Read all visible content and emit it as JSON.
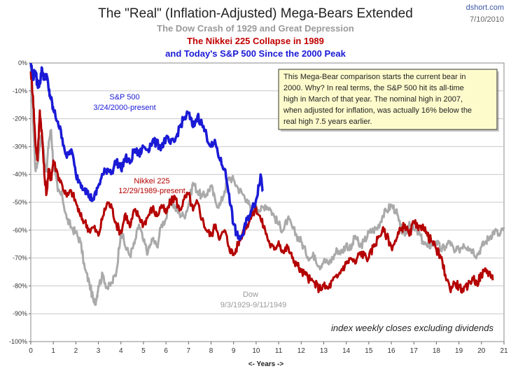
{
  "header": {
    "title": "The \"Real\" (Inflation-Adjusted) Mega-Bears Extended",
    "subtitle_dow": "The Dow Crash of 1929 and Great Depression",
    "subtitle_nikkei": "The Nikkei 225 Collapse in 1989",
    "subtitle_sp": "and Today's S&P 500 Since the 2000 Peak",
    "source": "dshort.com",
    "date": "7/10/2010"
  },
  "colors": {
    "dow": "#aaaaaa",
    "nikkei": "#b40000",
    "sp500": "#1a1ad6",
    "comment_bg": "#fdfbcc"
  },
  "comment": {
    "lines": [
      "This Mega-Bear comparison starts  the current bear in",
      "2000.  Why? In real terms, the S&P 500 hit its all-time",
      "high in March of that year. The nominal high in 2007,",
      "when adjusted for inflation, was actually 16% below the",
      "real high 7.5 years earlier."
    ]
  },
  "footnote": "index weekly closes excluding dividends",
  "labels": {
    "sp_name": "S&P 500",
    "sp_range": "3/24/2000-present",
    "nikkei_name": "Nikkei 225",
    "nikkei_range": "12/29/1989-present",
    "dow_name": "Dow",
    "dow_range": "9/3/1929-9/11/1949"
  },
  "chart_data": {
    "type": "line",
    "title": "The \"Real\" (Inflation-Adjusted) Mega-Bears Extended",
    "xlabel": "<- Years ->",
    "ylabel": "",
    "xlim": [
      0,
      21
    ],
    "ylim": [
      -100,
      0
    ],
    "x_ticks": [
      "0",
      "1",
      "2",
      "3",
      "4",
      "5",
      "6",
      "7",
      "8",
      "9",
      "10",
      "11",
      "12",
      "13",
      "14",
      "15",
      "16",
      "17",
      "18",
      "19",
      "20",
      "21"
    ],
    "y_ticks": [
      "0%",
      "-10%",
      "-20%",
      "-30%",
      "-40%",
      "-50%",
      "-60%",
      "-70%",
      "-80%",
      "-90%",
      "-100%"
    ],
    "grid": true,
    "series": [
      {
        "name": "Dow",
        "color": "#aaaaaa",
        "x": [
          0,
          0.1,
          0.2,
          0.3,
          0.4,
          0.5,
          0.6,
          0.7,
          0.8,
          0.9,
          1.0,
          1.2,
          1.4,
          1.6,
          1.8,
          2.0,
          2.2,
          2.4,
          2.6,
          2.8,
          2.9,
          3.0,
          3.2,
          3.4,
          3.6,
          3.8,
          4.0,
          4.2,
          4.4,
          4.6,
          4.8,
          5.0,
          5.2,
          5.4,
          5.6,
          5.8,
          6.0,
          6.2,
          6.4,
          6.6,
          6.8,
          7.0,
          7.2,
          7.4,
          7.6,
          7.8,
          8.0,
          8.2,
          8.4,
          8.6,
          8.8,
          9.0,
          9.2,
          9.4,
          9.6,
          9.8,
          10.0,
          10.2,
          10.4,
          10.6,
          10.8,
          11.0,
          11.2,
          11.4,
          11.6,
          11.8,
          12.0,
          12.2,
          12.4,
          12.6,
          12.8,
          13.0,
          13.2,
          13.4,
          13.6,
          13.8,
          14.0,
          14.2,
          14.4,
          14.6,
          14.8,
          15.0,
          15.2,
          15.4,
          15.6,
          15.8,
          16.0,
          16.2,
          16.4,
          16.6,
          16.8,
          17.0,
          17.2,
          17.4,
          17.6,
          17.8,
          18.0,
          18.2,
          18.4,
          18.6,
          18.8,
          19.0,
          19.2,
          19.4,
          19.6,
          19.8,
          20.0,
          20.2,
          20.4,
          20.6,
          20.8,
          21.0
        ],
        "values": [
          -1,
          -20,
          -38,
          -36,
          -29,
          -26,
          -34,
          -39,
          -28,
          -24,
          -36,
          -46,
          -48,
          -56,
          -59,
          -61,
          -64,
          -74,
          -79,
          -86,
          -85,
          -80,
          -76,
          -81,
          -79,
          -75,
          -60,
          -66,
          -69,
          -65,
          -58,
          -64,
          -68,
          -63,
          -66,
          -58,
          -56,
          -49,
          -52,
          -54,
          -55,
          -51,
          -43,
          -46,
          -48,
          -47,
          -44,
          -50,
          -51,
          -46,
          -41,
          -42,
          -45,
          -47,
          -49,
          -54,
          -51,
          -53,
          -51,
          -52,
          -55,
          -58,
          -60,
          -56,
          -59,
          -62,
          -64,
          -68,
          -70,
          -69,
          -73,
          -71,
          -72,
          -70,
          -67,
          -68,
          -65,
          -67,
          -62,
          -66,
          -64,
          -61,
          -60,
          -59,
          -55,
          -53,
          -51,
          -53,
          -59,
          -62,
          -57,
          -60,
          -61,
          -64,
          -66,
          -65,
          -64,
          -67,
          -66,
          -64,
          -68,
          -67,
          -65,
          -66,
          -67,
          -69,
          -66,
          -64,
          -62,
          -60,
          -62,
          -59
        ]
      },
      {
        "name": "Nikkei 225",
        "color": "#b40000",
        "x": [
          0,
          0.1,
          0.2,
          0.3,
          0.4,
          0.5,
          0.6,
          0.7,
          0.8,
          0.9,
          1.0,
          1.2,
          1.4,
          1.6,
          1.8,
          2.0,
          2.2,
          2.4,
          2.6,
          2.8,
          3.0,
          3.2,
          3.4,
          3.6,
          3.8,
          4.0,
          4.2,
          4.4,
          4.6,
          4.8,
          5.0,
          5.2,
          5.4,
          5.6,
          5.8,
          6.0,
          6.2,
          6.4,
          6.6,
          6.8,
          7.0,
          7.2,
          7.4,
          7.6,
          7.8,
          8.0,
          8.2,
          8.4,
          8.6,
          8.8,
          9.0,
          9.2,
          9.4,
          9.6,
          9.8,
          10.0,
          10.2,
          10.4,
          10.6,
          10.8,
          11.0,
          11.2,
          11.4,
          11.6,
          11.8,
          12.0,
          12.2,
          12.4,
          12.6,
          12.8,
          13.0,
          13.2,
          13.4,
          13.6,
          13.8,
          14.0,
          14.2,
          14.4,
          14.6,
          14.8,
          15.0,
          15.2,
          15.4,
          15.6,
          15.8,
          16.0,
          16.2,
          16.4,
          16.6,
          16.8,
          17.0,
          17.2,
          17.4,
          17.6,
          17.8,
          18.0,
          18.2,
          18.4,
          18.6,
          18.8,
          19.0,
          19.2,
          19.4,
          19.6,
          19.8,
          20.0,
          20.2,
          20.4,
          20.5
        ],
        "values": [
          -3,
          -12,
          -28,
          -35,
          -17,
          -26,
          -40,
          -47,
          -38,
          -42,
          -35,
          -40,
          -44,
          -48,
          -46,
          -50,
          -55,
          -57,
          -60,
          -59,
          -62,
          -55,
          -50,
          -52,
          -58,
          -61,
          -54,
          -59,
          -53,
          -55,
          -58,
          -55,
          -52,
          -55,
          -51,
          -54,
          -50,
          -48,
          -53,
          -49,
          -47,
          -53,
          -50,
          -56,
          -60,
          -62,
          -58,
          -63,
          -60,
          -66,
          -69,
          -65,
          -61,
          -58,
          -55,
          -52,
          -56,
          -60,
          -65,
          -67,
          -64,
          -68,
          -66,
          -70,
          -72,
          -75,
          -76,
          -78,
          -79,
          -81,
          -80,
          -81,
          -78,
          -77,
          -74,
          -72,
          -70,
          -72,
          -68,
          -69,
          -70,
          -66,
          -63,
          -60,
          -62,
          -66,
          -64,
          -60,
          -58,
          -62,
          -57,
          -60,
          -58,
          -62,
          -64,
          -67,
          -70,
          -76,
          -81,
          -79,
          -80,
          -82,
          -80,
          -77,
          -79,
          -76,
          -74,
          -76,
          -78
        ]
      },
      {
        "name": "S&P 500",
        "color": "#1a1ad6",
        "x": [
          0,
          0.1,
          0.2,
          0.3,
          0.4,
          0.5,
          0.6,
          0.7,
          0.8,
          0.9,
          1.0,
          1.2,
          1.4,
          1.6,
          1.8,
          2.0,
          2.2,
          2.4,
          2.6,
          2.8,
          3.0,
          3.2,
          3.4,
          3.6,
          3.8,
          4.0,
          4.2,
          4.4,
          4.6,
          4.8,
          5.0,
          5.2,
          5.4,
          5.6,
          5.8,
          6.0,
          6.2,
          6.4,
          6.6,
          6.8,
          7.0,
          7.2,
          7.4,
          7.6,
          7.8,
          8.0,
          8.2,
          8.4,
          8.6,
          8.8,
          9.0,
          9.2,
          9.4,
          9.6,
          9.8,
          10.0,
          10.2,
          10.3
        ],
        "values": [
          0,
          -5,
          -3,
          -8,
          -7,
          -2,
          -6,
          -4,
          -10,
          -13,
          -17,
          -21,
          -27,
          -34,
          -31,
          -40,
          -43,
          -45,
          -48,
          -49,
          -44,
          -40,
          -38,
          -39,
          -35,
          -38,
          -34,
          -36,
          -31,
          -33,
          -30,
          -31,
          -28,
          -29,
          -30,
          -27,
          -29,
          -28,
          -23,
          -20,
          -18,
          -23,
          -19,
          -22,
          -26,
          -30,
          -29,
          -35,
          -38,
          -47,
          -58,
          -63,
          -62,
          -56,
          -53,
          -49,
          -40,
          -46
        ]
      }
    ]
  }
}
